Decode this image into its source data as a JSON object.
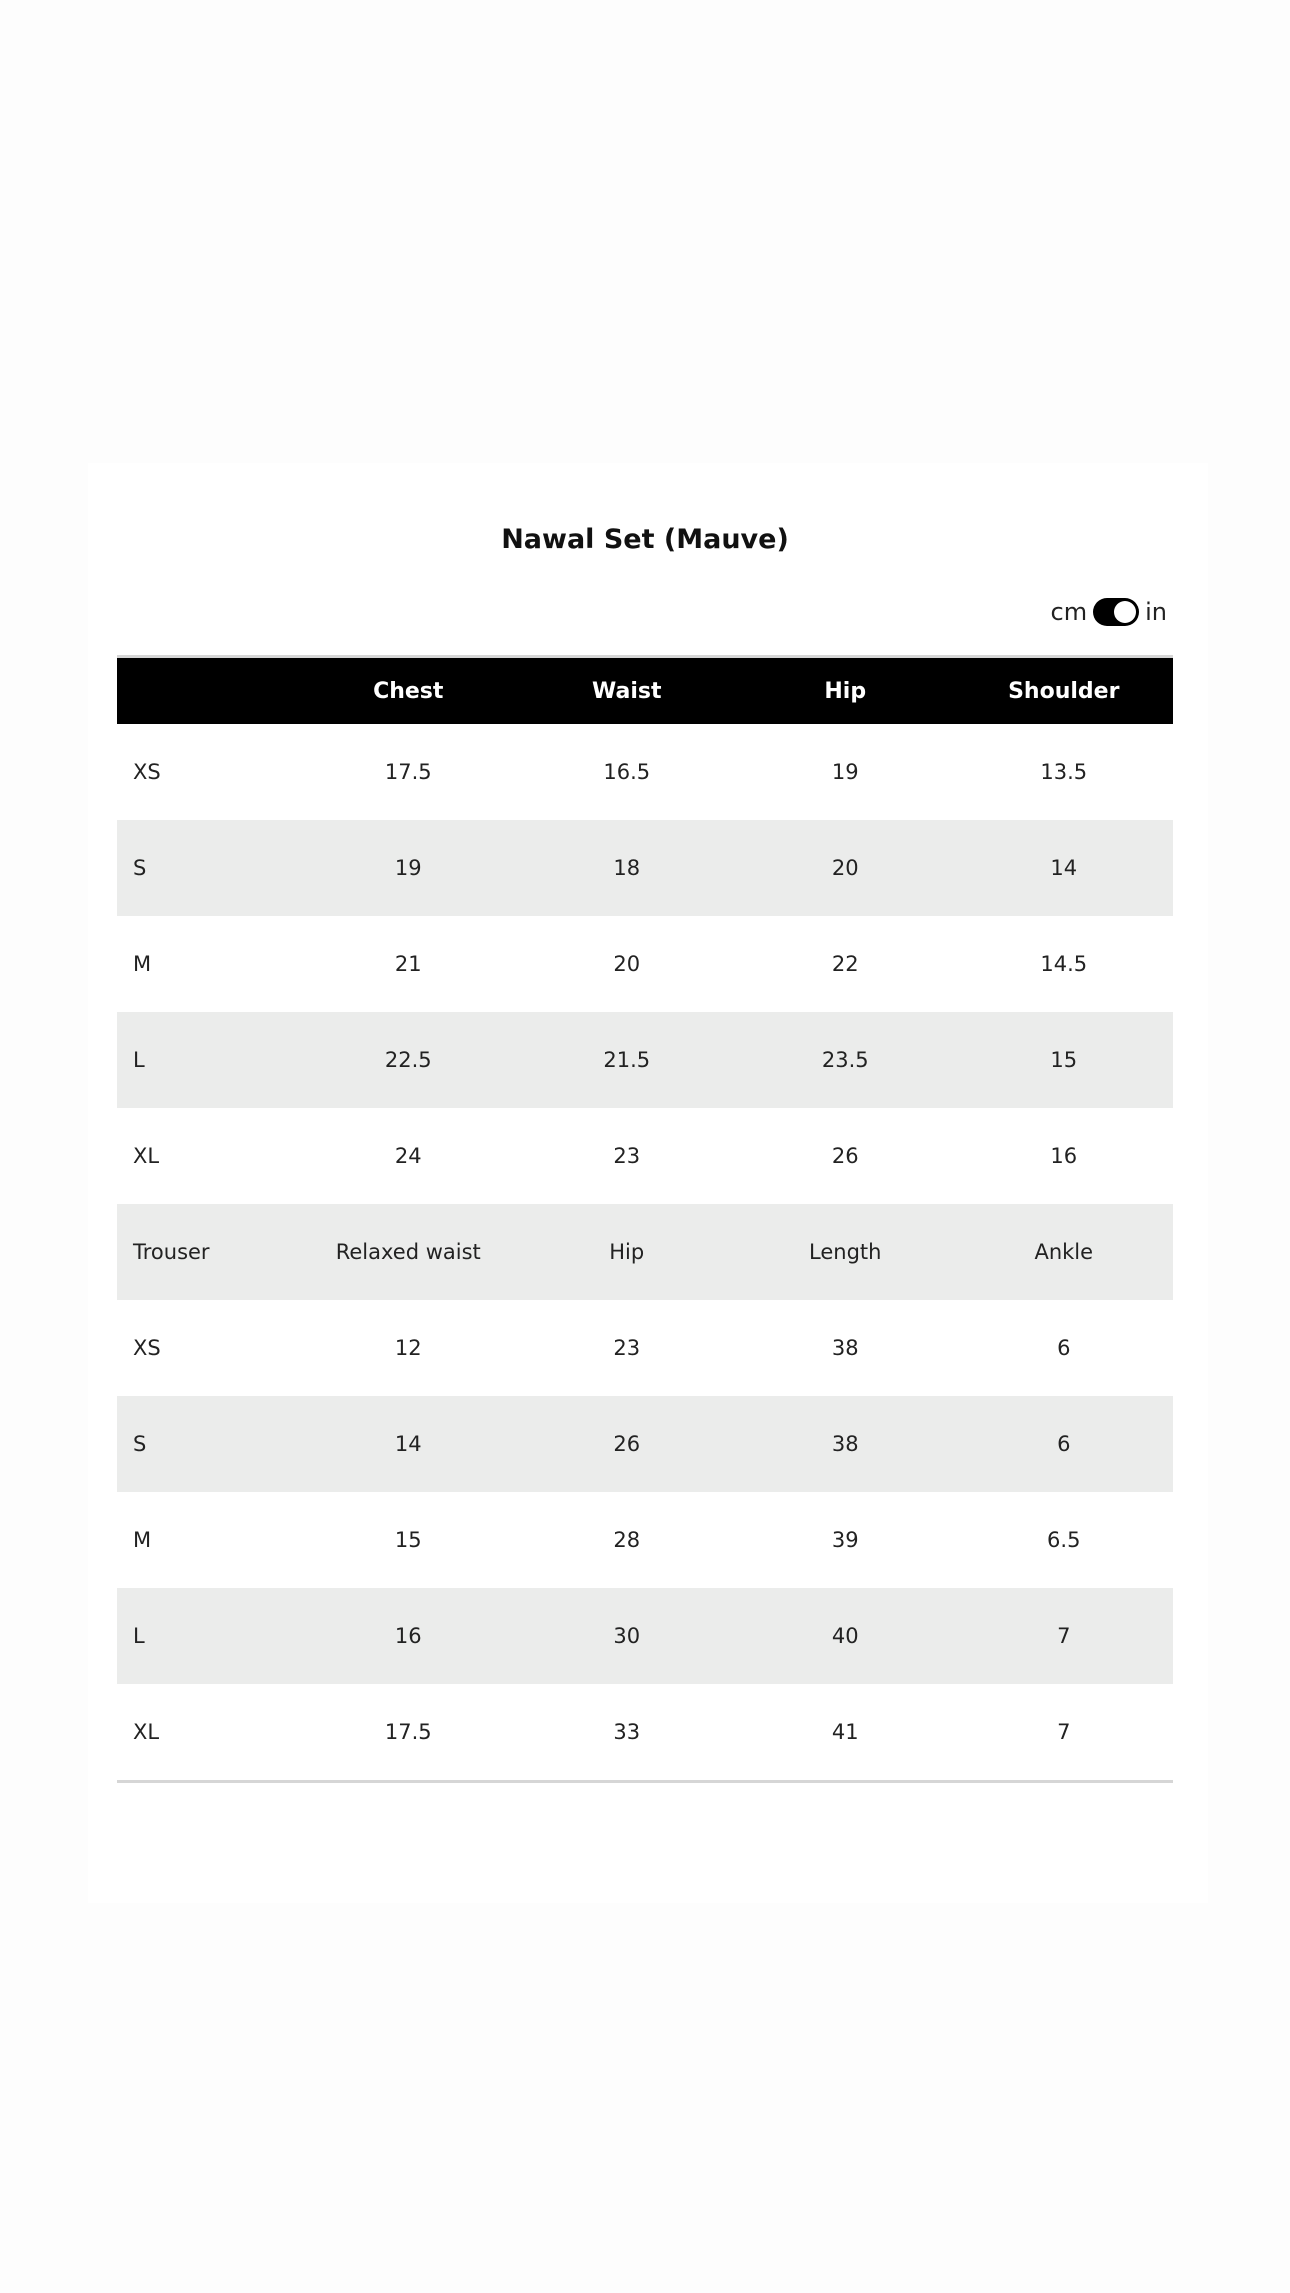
{
  "title": "Nawal Set (Mauve)",
  "unit_toggle": {
    "left_label": "cm",
    "right_label": "in",
    "selected": "in"
  },
  "table": {
    "header": [
      "",
      "Chest",
      "Waist",
      "Hip",
      "Shoulder"
    ],
    "rows": [
      [
        "XS",
        "17.5",
        "16.5",
        "19",
        "13.5"
      ],
      [
        "S",
        "19",
        "18",
        "20",
        "14"
      ],
      [
        "M",
        "21",
        "20",
        "22",
        "14.5"
      ],
      [
        "L",
        "22.5",
        "21.5",
        "23.5",
        "15"
      ],
      [
        "XL",
        "24",
        "23",
        "26",
        "16"
      ],
      [
        "Trouser",
        "Relaxed waist",
        "Hip",
        "Length",
        "Ankle"
      ],
      [
        "XS",
        "12",
        "23",
        "38",
        "6"
      ],
      [
        "S",
        "14",
        "26",
        "38",
        "6"
      ],
      [
        "M",
        "15",
        "28",
        "39",
        "6.5"
      ],
      [
        "L",
        "16",
        "30",
        "40",
        "7"
      ],
      [
        "XL",
        "17.5",
        "33",
        "41",
        "7"
      ]
    ]
  }
}
